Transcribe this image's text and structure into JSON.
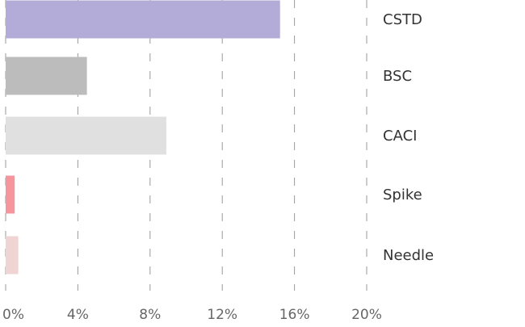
{
  "chart_data": {
    "type": "bar",
    "orientation": "horizontal",
    "categories": [
      "CSTD",
      "BSC",
      "CACI",
      "Spike",
      "Needle"
    ],
    "values": [
      15.2,
      4.5,
      8.9,
      0.5,
      0.7
    ],
    "colors": [
      "#b4acd8",
      "#bcbcbc",
      "#e0e0e0",
      "#f6959c",
      "#f0d3d3"
    ],
    "xlim": [
      0,
      20
    ],
    "xticks": [
      0,
      4,
      8,
      12,
      16,
      20
    ],
    "xtick_labels": [
      "0%",
      "4%",
      "8%",
      "12%",
      "16%",
      "20%"
    ],
    "grid": true,
    "title": "",
    "xlabel": "",
    "ylabel": ""
  }
}
